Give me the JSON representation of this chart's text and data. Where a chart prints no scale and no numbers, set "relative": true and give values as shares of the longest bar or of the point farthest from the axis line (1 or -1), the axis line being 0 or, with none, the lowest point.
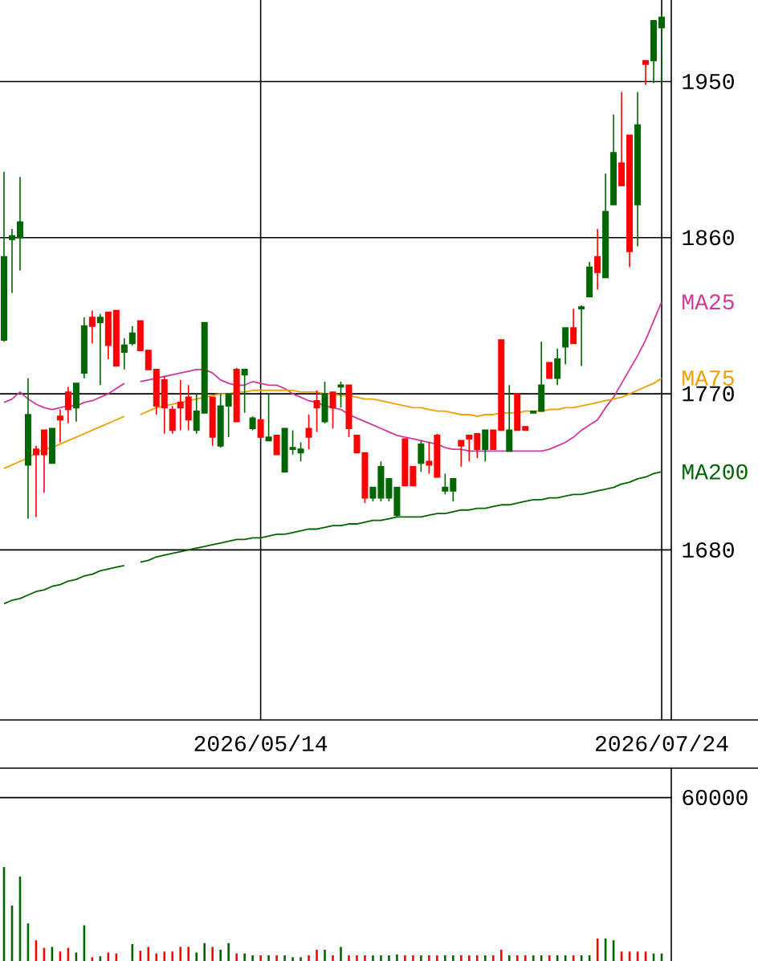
{
  "chart_data": [
    {
      "type": "candlestick",
      "categories": [
        null,
        null,
        null,
        null,
        null,
        null,
        null,
        null,
        null,
        null,
        null,
        null,
        null,
        null,
        null,
        null,
        null,
        null,
        null,
        null,
        null,
        null,
        null,
        null,
        null,
        null,
        null,
        null,
        null,
        null,
        null,
        null,
        "2026/05/14",
        null,
        null,
        null,
        null,
        null,
        null,
        null,
        null,
        null,
        null,
        null,
        null,
        null,
        null,
        null,
        null,
        null,
        null,
        null,
        null,
        null,
        null,
        null,
        null,
        null,
        null,
        null,
        null,
        null,
        null,
        null,
        null,
        null,
        null,
        null,
        null,
        null,
        null,
        null,
        null,
        null,
        null,
        null,
        null,
        null,
        null,
        null,
        null,
        null,
        "2026/07/24"
      ],
      "ohlc": [
        [
          1801,
          1898,
          1800,
          1849
        ],
        [
          1859,
          1865,
          1828,
          1861
        ],
        [
          1860,
          1895,
          1841,
          1869
        ],
        [
          1729,
          1779,
          1698,
          1758
        ],
        [
          1738,
          1740,
          1699,
          1735
        ],
        [
          1749,
          1749,
          1713,
          1735
        ],
        [
          1730,
          1750,
          1730,
          1750
        ],
        [
          1757,
          1761,
          1742,
          1755
        ],
        [
          1771,
          1774,
          1753,
          1761
        ],
        [
          1762,
          1776,
          1754,
          1776
        ],
        [
          1782,
          1814,
          1779,
          1809
        ],
        [
          1814,
          1818,
          1799,
          1809
        ],
        [
          1811,
          1816,
          1775,
          1814
        ],
        [
          1817,
          1817,
          1790,
          1798
        ],
        [
          1818,
          1818,
          1786,
          1786
        ],
        [
          1794,
          1802,
          1784,
          1798
        ],
        [
          1799,
          1809,
          1798,
          1805
        ],
        [
          1812,
          1812,
          1795,
          1795
        ],
        [
          1795,
          1795,
          1784,
          1784
        ],
        [
          1784,
          1784,
          1758,
          1763
        ],
        [
          1778,
          1780,
          1747,
          1762
        ],
        [
          1761,
          1763,
          1747,
          1749
        ],
        [
          1765,
          1778,
          1749,
          1762
        ],
        [
          1768,
          1775,
          1749,
          1755
        ],
        [
          1749,
          1770,
          1747,
          1760
        ],
        [
          1759,
          1811,
          1759,
          1811
        ],
        [
          1768,
          1768,
          1740,
          1745
        ],
        [
          1740,
          1770,
          1739,
          1763
        ],
        [
          1763,
          1770,
          1745,
          1770
        ],
        [
          1784,
          1785,
          1754,
          1754
        ],
        [
          1781,
          1784,
          1759,
          1784
        ],
        [
          1750,
          1757,
          1749,
          1756
        ],
        [
          1755,
          1755,
          1745,
          1745
        ],
        [
          1743,
          1770,
          1743,
          1745
        ],
        [
          1746,
          1746,
          1735,
          1735
        ],
        [
          1725,
          1750,
          1725,
          1750
        ],
        [
          1738,
          1749,
          1735,
          1739
        ],
        [
          1736,
          1742,
          1731,
          1738
        ],
        [
          1750,
          1758,
          1738,
          1745
        ],
        [
          1766,
          1772,
          1748,
          1762
        ],
        [
          1754,
          1777,
          1753,
          1770
        ],
        [
          1771,
          1771,
          1750,
          1762
        ],
        [
          1774,
          1777,
          1762,
          1775
        ],
        [
          1775,
          1775,
          1745,
          1750
        ],
        [
          1746,
          1746,
          1736,
          1736
        ],
        [
          1736,
          1736,
          1707,
          1710
        ],
        [
          1710,
          1716,
          1708,
          1716
        ],
        [
          1710,
          1731,
          1708,
          1728
        ],
        [
          1710,
          1721,
          1708,
          1721
        ],
        [
          1700,
          1716,
          1699,
          1716
        ],
        [
          1744,
          1744,
          1717,
          1717
        ],
        [
          1728,
          1728,
          1717,
          1717
        ],
        [
          1730,
          1743,
          1725,
          1741
        ],
        [
          1731,
          1742,
          1724,
          1729
        ],
        [
          1746,
          1747,
          1722,
          1722
        ],
        [
          1714,
          1724,
          1712,
          1716
        ],
        [
          1714,
          1721,
          1708,
          1721
        ],
        [
          1743,
          1743,
          1728,
          1740
        ],
        [
          1746,
          1746,
          1731,
          1744
        ],
        [
          1747,
          1747,
          1733,
          1738
        ],
        [
          1738,
          1749,
          1731,
          1749
        ],
        [
          1749,
          1749,
          1738,
          1738
        ],
        [
          1801,
          1801,
          1749,
          1749
        ],
        [
          1737,
          1775,
          1737,
          1749
        ],
        [
          1770,
          1770,
          1749,
          1749
        ],
        [
          1751,
          1751,
          1749,
          1749
        ],
        [
          1759,
          1760,
          1759,
          1760
        ],
        [
          1760,
          1800,
          1760,
          1775
        ],
        [
          1788,
          1788,
          1779,
          1779
        ],
        [
          1779,
          1796,
          1775,
          1790
        ],
        [
          1797,
          1808,
          1787,
          1808
        ],
        [
          1808,
          1819,
          1799,
          1799
        ],
        [
          1819,
          1821,
          1786,
          1820
        ],
        [
          1826,
          1846,
          1826,
          1843
        ],
        [
          1849,
          1865,
          1830,
          1840
        ],
        [
          1837,
          1897,
          1837,
          1875
        ],
        [
          1879,
          1931,
          1879,
          1909
        ],
        [
          1903,
          1944,
          1890,
          1890
        ],
        [
          1919,
          1919,
          1843,
          1852
        ],
        [
          1879,
          1944,
          1855,
          1925
        ],
        [
          1962,
          1962,
          1948,
          1960
        ],
        [
          1962,
          1985,
          1949,
          1985
        ],
        [
          1981,
          1989,
          1949,
          1987
        ]
      ],
      "colors": [
        "#006600",
        "#006600",
        "#006600",
        "#006600",
        "#ff0000",
        "#ff0000",
        "#006600",
        "#ff0000",
        "#ff0000",
        "#006600",
        "#006600",
        "#ff0000",
        "#006600",
        "#ff0000",
        "#ff0000",
        "#006600",
        "#006600",
        "#ff0000",
        "#ff0000",
        "#ff0000",
        "#ff0000",
        "#ff0000",
        "#ff0000",
        "#ff0000",
        "#006600",
        "#006600",
        "#ff0000",
        "#006600",
        "#006600",
        "#ff0000",
        "#006600",
        "#006600",
        "#ff0000",
        "#006600",
        "#ff0000",
        "#006600",
        "#006600",
        "#006600",
        "#ff0000",
        "#ff0000",
        "#006600",
        "#ff0000",
        "#006600",
        "#ff0000",
        "#ff0000",
        "#ff0000",
        "#006600",
        "#006600",
        "#006600",
        "#006600",
        "#ff0000",
        "#ff0000",
        "#006600",
        "#ff0000",
        "#ff0000",
        "#006600",
        "#006600",
        "#ff0000",
        "#ff0000",
        "#ff0000",
        "#006600",
        "#ff0000",
        "#ff0000",
        "#006600",
        "#ff0000",
        "#ff0000",
        "#006600",
        "#006600",
        "#ff0000",
        "#006600",
        "#006600",
        "#ff0000",
        "#006600",
        "#006600",
        "#ff0000",
        "#006600",
        "#006600",
        "#ff0000",
        "#ff0000",
        "#006600",
        "#ff0000",
        "#006600",
        "#006600"
      ],
      "series": [
        {
          "name": "MA25",
          "type": "line",
          "color": "#d4379c",
          "values": [
            1765,
            1767,
            1771,
            1767,
            1764,
            1762,
            1761,
            1762,
            1763,
            1763,
            1765,
            1766,
            1768,
            1770,
            1773,
            1776,
            null,
            1777,
            1778,
            1779,
            1780,
            1781,
            1782,
            1783,
            1784,
            1784,
            1782,
            1778,
            1776,
            1775,
            1775,
            1777,
            1776,
            1775,
            1775,
            1773,
            1770,
            1768,
            1766,
            1765,
            1763,
            1762,
            1761,
            1758,
            1756,
            1754,
            1752,
            1750,
            1748,
            1746,
            1745,
            1744,
            1743,
            1742,
            1741,
            1739,
            1738,
            1738,
            1737,
            1737,
            1737,
            1737,
            1737,
            1737,
            1737,
            1737,
            1737,
            1737,
            1738,
            1740,
            1742,
            1745,
            1749,
            1752,
            1755,
            1762,
            1768,
            1776,
            1784,
            1792,
            1801,
            1812,
            1823
          ]
        },
        {
          "name": "MA75",
          "type": "line",
          "color": "#f0a000",
          "values": [
            1727,
            1729,
            1731,
            1733,
            1736,
            1738,
            1739,
            1741,
            1743,
            1745,
            1747,
            1749,
            1751,
            1753,
            1755,
            1757,
            null,
            1758,
            1760,
            1762,
            1763,
            1764,
            1765,
            1766,
            1767,
            1768,
            1769,
            1770,
            1770,
            1771,
            1771,
            1772,
            1772,
            1772,
            1772,
            1772,
            1772,
            1771,
            1771,
            1771,
            1770,
            1770,
            1769,
            1769,
            1768,
            1767,
            1767,
            1766,
            1765,
            1764,
            1763,
            1762,
            1762,
            1761,
            1760,
            1760,
            1759,
            1758,
            1758,
            1757,
            1758,
            1758,
            1759,
            1759,
            1759,
            1760,
            1760,
            1760,
            1761,
            1761,
            1762,
            1762,
            1763,
            1764,
            1765,
            1766,
            1767,
            1768,
            1770,
            1772,
            1774,
            1776,
            1779
          ]
        },
        {
          "name": "MA200",
          "type": "line",
          "color": "#006600",
          "values": [
            1649,
            1651,
            1652,
            1654,
            1656,
            1657,
            1659,
            1660,
            1662,
            1663,
            1665,
            1666,
            1668,
            1669,
            1670,
            1671,
            null,
            1673,
            1674,
            1676,
            1677,
            1678,
            1679,
            1680,
            1681,
            1682,
            1683,
            1684,
            1685,
            1686,
            1686,
            1687,
            1687,
            1688,
            1689,
            1689,
            1690,
            1691,
            1692,
            1692,
            1693,
            1694,
            1694,
            1695,
            1695,
            1696,
            1697,
            1697,
            1698,
            1699,
            1699,
            1699,
            1699,
            1700,
            1701,
            1701,
            1702,
            1703,
            1703,
            1704,
            1704,
            1705,
            1706,
            1706,
            1707,
            1708,
            1709,
            1709,
            1710,
            1710,
            1711,
            1712,
            1712,
            1713,
            1714,
            1715,
            1716,
            1718,
            1719,
            1721,
            1722,
            1724,
            1725
          ]
        }
      ],
      "ylim": [
        1582,
        1997
      ],
      "yticks": [
        1680,
        1770,
        1860,
        1950
      ],
      "grid": true
    },
    {
      "type": "bar",
      "relative": true,
      "categories": [
        null,
        null,
        null,
        null,
        null,
        null,
        null,
        null,
        null,
        null,
        null,
        null,
        null,
        null,
        null,
        null,
        null,
        null,
        null,
        null,
        null,
        null,
        null,
        null,
        null,
        null,
        null,
        null,
        null,
        null,
        null,
        null,
        null,
        null,
        null,
        null,
        null,
        null,
        null,
        null,
        null,
        null,
        null,
        null,
        null,
        null,
        null,
        null,
        null,
        null,
        null,
        null,
        null,
        null,
        null,
        null,
        null,
        null,
        null,
        null,
        null,
        null,
        null,
        null,
        null,
        null,
        null,
        null,
        null,
        null,
        null,
        null,
        null,
        null,
        null,
        null,
        null,
        null,
        null,
        null,
        null,
        null,
        null
      ],
      "values": [
        1,
        0.59,
        0.9,
        0.4,
        0.22,
        0.14,
        0.15,
        0.1,
        0.14,
        0.09,
        0.38,
        0.04,
        0.05,
        0.09,
        0.08,
        null,
        0.18,
        0.11,
        0.15,
        0.08,
        0.1,
        0.1,
        0.15,
        0.15,
        0.09,
        0.19,
        0.15,
        0.12,
        0.19,
        0.08,
        0.08,
        0.06,
        0.06,
        0.06,
        0.06,
        0.06,
        0.04,
        0.04,
        0.06,
        0.12,
        0.12,
        0.06,
        0.15,
        0.06,
        0.06,
        0.06,
        0.06,
        0.06,
        0.06,
        0.07,
        0.06,
        0.06,
        0.06,
        0.06,
        0.06,
        0.06,
        0.06,
        0.06,
        0.06,
        0.06,
        0.06,
        0.06,
        0.12,
        0.06,
        0.06,
        0.06,
        0.06,
        0.06,
        0.06,
        0.06,
        0.06,
        0.06,
        0.06,
        0.06,
        0.24,
        0.24,
        0.22,
        0.1,
        0.1,
        0.1,
        0.1,
        0.08,
        0.08
      ],
      "colors": [
        "#006600",
        "#006600",
        "#006600",
        "#006600",
        "#ff0000",
        "#ff0000",
        "#006600",
        "#ff0000",
        "#ff0000",
        "#006600",
        "#006600",
        "#ff0000",
        "#006600",
        "#ff0000",
        "#ff0000",
        "#006600",
        "#006600",
        "#ff0000",
        "#ff0000",
        "#ff0000",
        "#ff0000",
        "#ff0000",
        "#ff0000",
        "#ff0000",
        "#006600",
        "#006600",
        "#ff0000",
        "#006600",
        "#006600",
        "#ff0000",
        "#006600",
        "#006600",
        "#ff0000",
        "#006600",
        "#ff0000",
        "#006600",
        "#006600",
        "#006600",
        "#ff0000",
        "#ff0000",
        "#006600",
        "#ff0000",
        "#006600",
        "#ff0000",
        "#ff0000",
        "#ff0000",
        "#006600",
        "#006600",
        "#006600",
        "#006600",
        "#ff0000",
        "#ff0000",
        "#006600",
        "#ff0000",
        "#ff0000",
        "#006600",
        "#006600",
        "#ff0000",
        "#ff0000",
        "#ff0000",
        "#006600",
        "#ff0000",
        "#ff0000",
        "#006600",
        "#ff0000",
        "#ff0000",
        "#006600",
        "#006600",
        "#ff0000",
        "#006600",
        "#006600",
        "#ff0000",
        "#006600",
        "#006600",
        "#ff0000",
        "#006600",
        "#006600",
        "#ff0000",
        "#ff0000",
        "#ff0000",
        "#ff0000",
        "#006600",
        "#006600"
      ],
      "ref_lines": [
        {
          "axis": "y",
          "value": 1.74
        }
      ],
      "annotations": [
        "60000"
      ]
    }
  ]
}
